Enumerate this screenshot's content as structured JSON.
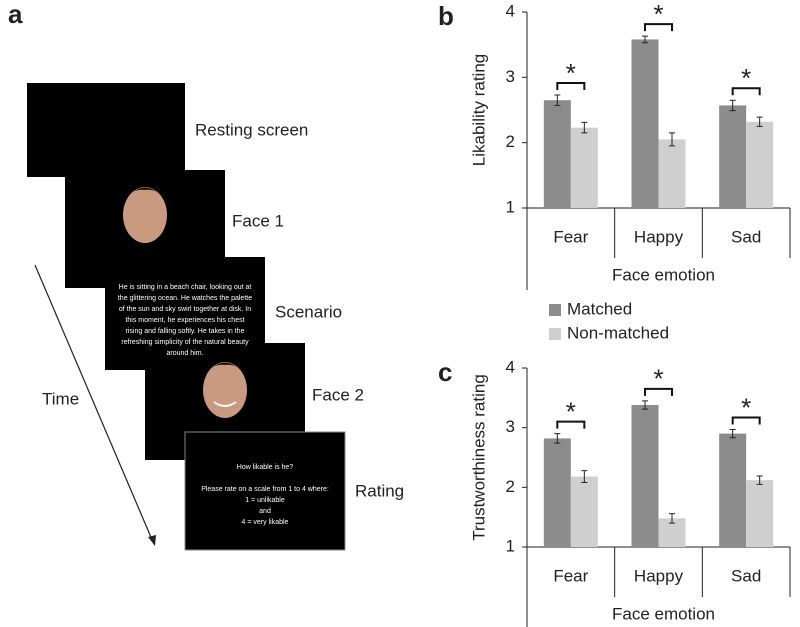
{
  "panel_a": {
    "label": "a",
    "time": "Time",
    "screens": [
      {
        "label": "Resting screen"
      },
      {
        "label": "Face 1"
      },
      {
        "label": "Scenario",
        "lines": [
          "He is sitting in a beach chair, looking out at",
          "the glittering ocean. He watches the palette",
          "of the sun and sky swirl together at disk. In",
          "this moment, he experiences his chest",
          "rising and falling softly. He takes in the",
          "refreshing simplicity of the natural beauty",
          "around him."
        ]
      },
      {
        "label": "Face 2"
      },
      {
        "label": "Rating",
        "lines": [
          "How likable is he?",
          "",
          "Please rate on a scale from 1 to 4 where:",
          "1 = unlikable",
          "and",
          "4 = very likable"
        ]
      }
    ]
  },
  "chart_data": [
    {
      "type": "bar",
      "panel": "b",
      "ylabel": "Likability rating",
      "xlabel": "Face emotion",
      "categories": [
        "Fear",
        "Happy",
        "Sad"
      ],
      "series": [
        {
          "name": "Matched",
          "color": "#8c8c8c",
          "values": [
            2.65,
            3.58,
            2.57
          ],
          "errors": [
            0.08,
            0.05,
            0.08
          ]
        },
        {
          "name": "Non-matched",
          "color": "#cfcfcf",
          "values": [
            2.23,
            2.05,
            2.32
          ],
          "errors": [
            0.08,
            0.1,
            0.07
          ]
        }
      ],
      "annotations": [
        "*",
        "*",
        "*"
      ],
      "ylim": [
        1,
        4
      ],
      "yticks": [
        1,
        2,
        3,
        4
      ]
    },
    {
      "type": "bar",
      "panel": "c",
      "ylabel": "Trustworthiness rating",
      "xlabel": "Face emotion",
      "categories": [
        "Fear",
        "Happy",
        "Sad"
      ],
      "series": [
        {
          "color": "#8c8c8c",
          "values": [
            2.82,
            3.38,
            2.9
          ],
          "errors": [
            0.08,
            0.07,
            0.07
          ]
        },
        {
          "color": "#cfcfcf",
          "values": [
            2.18,
            1.48,
            2.12
          ],
          "errors": [
            0.1,
            0.08,
            0.07
          ]
        }
      ],
      "annotations": [
        "*",
        "*",
        "*"
      ],
      "ylim": [
        1,
        4
      ],
      "yticks": [
        1,
        2,
        3,
        4
      ]
    }
  ]
}
